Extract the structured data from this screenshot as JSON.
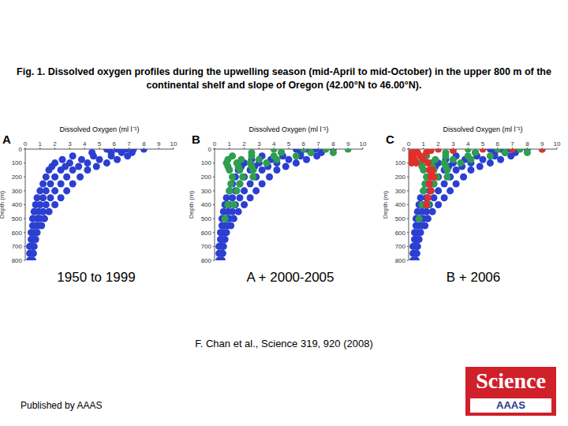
{
  "title": "Fig. 1. Dissolved oxygen profiles during the upwelling season (mid-April to mid-October) in the upper 800 m of the continental shelf and slope of Oregon (42.00°N to 46.00°N).",
  "citation": "F. Chan et al., Science 319, 920 (2008)",
  "footer": "Published by AAAS",
  "logo": {
    "text": "Science",
    "subtext": "AAAS"
  },
  "chart_data": [
    {
      "type": "scatter",
      "panel": "A",
      "caption": "1950 to 1999",
      "x_label": "Dissolved Oxygen (ml l⁻¹)",
      "y_label": "Depth (m)",
      "xlim": [
        0,
        10
      ],
      "xticks": [
        0,
        1,
        2,
        3,
        4,
        5,
        6,
        7,
        8,
        9,
        10
      ],
      "ylim": [
        0,
        800
      ],
      "yticks": [
        0,
        100,
        200,
        300,
        400,
        500,
        600,
        700,
        800
      ],
      "series": [
        {
          "color": "#2b3fd0",
          "x": [
            5.5,
            6.2,
            6.8,
            7.3,
            8.0,
            4.5,
            5.8,
            6.5,
            7.2,
            3.2,
            4.6,
            5.8,
            6.9,
            2.5,
            3.8,
            5.0,
            6.2,
            2.0,
            3.0,
            4.2,
            5.5,
            1.8,
            2.7,
            3.6,
            4.8,
            1.6,
            2.4,
            3.2,
            4.2,
            1.4,
            2.0,
            2.8,
            3.7,
            1.2,
            1.7,
            2.4,
            3.2,
            1.0,
            1.4,
            2.0,
            2.8,
            0.8,
            1.2,
            1.7,
            2.4,
            0.7,
            1.0,
            1.4,
            2.0,
            0.6,
            0.9,
            1.2,
            1.6,
            0.5,
            0.8,
            1.0,
            1.3,
            0.5,
            0.7,
            0.9,
            1.1,
            0.4,
            0.6,
            0.8,
            0.4,
            0.5,
            0.7,
            0.3,
            0.5,
            0.6,
            0.3,
            0.45,
            0.55,
            0.3,
            0.4,
            0.5
          ],
          "values": [
            0,
            0,
            0,
            0,
            0,
            25,
            25,
            25,
            25,
            50,
            50,
            50,
            50,
            75,
            75,
            75,
            75,
            100,
            100,
            100,
            100,
            125,
            125,
            125,
            125,
            150,
            150,
            150,
            150,
            200,
            200,
            200,
            200,
            250,
            250,
            250,
            250,
            300,
            300,
            300,
            300,
            350,
            350,
            350,
            350,
            400,
            400,
            400,
            400,
            450,
            450,
            450,
            450,
            500,
            500,
            500,
            500,
            550,
            550,
            550,
            550,
            600,
            600,
            600,
            650,
            650,
            650,
            700,
            700,
            700,
            750,
            750,
            750,
            800,
            800,
            800
          ]
        }
      ]
    },
    {
      "type": "scatter",
      "panel": "B",
      "caption": "A + 2000-2005",
      "x_label": "Dissolved Oxygen (ml l⁻¹)",
      "y_label": "Depth (m)",
      "xlim": [
        0,
        10
      ],
      "xticks": [
        0,
        1,
        2,
        3,
        4,
        5,
        6,
        7,
        8,
        9,
        10
      ],
      "ylim": [
        0,
        800
      ],
      "yticks": [
        0,
        100,
        200,
        300,
        400,
        500,
        600,
        700,
        800
      ],
      "series": [
        {
          "color": "#2b3fd0",
          "x": [
            5.5,
            6.2,
            6.8,
            7.3,
            8.0,
            4.5,
            5.8,
            6.5,
            7.2,
            3.2,
            4.6,
            5.8,
            6.9,
            2.5,
            3.8,
            5.0,
            6.2,
            2.0,
            3.0,
            4.2,
            5.5,
            1.8,
            2.7,
            3.6,
            4.8,
            1.6,
            2.4,
            3.2,
            4.2,
            1.4,
            2.0,
            2.8,
            3.7,
            1.2,
            1.7,
            2.4,
            3.2,
            1.0,
            1.4,
            2.0,
            2.8,
            0.8,
            1.2,
            1.7,
            2.4,
            0.7,
            1.0,
            1.4,
            2.0,
            0.6,
            0.9,
            1.2,
            1.6,
            0.5,
            0.8,
            1.0,
            1.3,
            0.5,
            0.7,
            0.9,
            1.1,
            0.4,
            0.6,
            0.8,
            0.4,
            0.5,
            0.7,
            0.3,
            0.5,
            0.6,
            0.3,
            0.45,
            0.55,
            0.3,
            0.4,
            0.5
          ],
          "values": [
            0,
            0,
            0,
            0,
            0,
            25,
            25,
            25,
            25,
            50,
            50,
            50,
            50,
            75,
            75,
            75,
            75,
            100,
            100,
            100,
            100,
            125,
            125,
            125,
            125,
            150,
            150,
            150,
            150,
            200,
            200,
            200,
            200,
            250,
            250,
            250,
            250,
            300,
            300,
            300,
            300,
            350,
            350,
            350,
            350,
            400,
            400,
            400,
            400,
            450,
            450,
            450,
            450,
            500,
            500,
            500,
            500,
            550,
            550,
            550,
            550,
            600,
            600,
            600,
            650,
            650,
            650,
            700,
            700,
            700,
            750,
            750,
            750,
            800,
            800,
            800
          ]
        },
        {
          "color": "#2e9e4f",
          "x": [
            4.0,
            6.0,
            7.5,
            9.0,
            2.5,
            4.5,
            6.5,
            8.0,
            1.2,
            2.5,
            4.0,
            5.5,
            0.9,
            1.8,
            3.0,
            4.2,
            0.8,
            1.5,
            2.4,
            3.5,
            0.9,
            1.6,
            2.5,
            1.0,
            1.7,
            2.6,
            1.2,
            1.9,
            2.6,
            1.1,
            1.7,
            1.0,
            1.5,
            0.9,
            1.3,
            0.7
          ],
          "values": [
            0,
            0,
            0,
            0,
            25,
            25,
            25,
            25,
            50,
            50,
            50,
            50,
            75,
            75,
            75,
            75,
            100,
            100,
            100,
            100,
            125,
            125,
            125,
            150,
            150,
            150,
            200,
            200,
            200,
            250,
            250,
            300,
            300,
            400,
            400,
            500
          ]
        }
      ]
    },
    {
      "type": "scatter",
      "panel": "C",
      "caption": "B + 2006",
      "x_label": "Dissolved Oxygen (ml l⁻¹)",
      "y_label": "Depth (m)",
      "xlim": [
        0,
        10
      ],
      "xticks": [
        0,
        1,
        2,
        3,
        4,
        5,
        6,
        7,
        8,
        9,
        10
      ],
      "ylim": [
        0,
        800
      ],
      "yticks": [
        0,
        100,
        200,
        300,
        400,
        500,
        600,
        700,
        800
      ],
      "series": [
        {
          "color": "#2b3fd0",
          "x": [
            5.5,
            6.2,
            6.8,
            7.3,
            8.0,
            4.5,
            5.8,
            6.5,
            7.2,
            3.2,
            4.6,
            5.8,
            6.9,
            2.5,
            3.8,
            5.0,
            6.2,
            2.0,
            3.0,
            4.2,
            5.5,
            1.8,
            2.7,
            3.6,
            4.8,
            1.6,
            2.4,
            3.2,
            4.2,
            1.4,
            2.0,
            2.8,
            3.7,
            1.2,
            1.7,
            2.4,
            3.2,
            1.0,
            1.4,
            2.0,
            2.8,
            0.8,
            1.2,
            1.7,
            2.4,
            0.7,
            1.0,
            1.4,
            2.0,
            0.6,
            0.9,
            1.2,
            1.6,
            0.5,
            0.8,
            1.0,
            1.3,
            0.5,
            0.7,
            0.9,
            1.1,
            0.4,
            0.6,
            0.8,
            0.4,
            0.5,
            0.7,
            0.3,
            0.5,
            0.6,
            0.3,
            0.45,
            0.55,
            0.3,
            0.4,
            0.5
          ],
          "values": [
            0,
            0,
            0,
            0,
            0,
            25,
            25,
            25,
            25,
            50,
            50,
            50,
            50,
            75,
            75,
            75,
            75,
            100,
            100,
            100,
            100,
            125,
            125,
            125,
            125,
            150,
            150,
            150,
            150,
            200,
            200,
            200,
            200,
            250,
            250,
            250,
            250,
            300,
            300,
            300,
            300,
            350,
            350,
            350,
            350,
            400,
            400,
            400,
            400,
            450,
            450,
            450,
            450,
            500,
            500,
            500,
            500,
            550,
            550,
            550,
            550,
            600,
            600,
            600,
            650,
            650,
            650,
            700,
            700,
            700,
            750,
            750,
            750,
            800,
            800,
            800
          ]
        },
        {
          "color": "#2e9e4f",
          "x": [
            4.0,
            6.0,
            7.5,
            9.0,
            2.5,
            4.5,
            6.5,
            8.0,
            1.2,
            2.5,
            4.0,
            5.5,
            0.9,
            1.8,
            3.0,
            4.2,
            0.8,
            1.5,
            2.4,
            3.5,
            0.9,
            1.6,
            2.5,
            1.0,
            1.7,
            2.6,
            1.2,
            1.9,
            2.6,
            1.1,
            1.7,
            1.0,
            1.5,
            0.9,
            1.3,
            0.7
          ],
          "values": [
            0,
            0,
            0,
            0,
            25,
            25,
            25,
            25,
            50,
            50,
            50,
            50,
            75,
            75,
            75,
            75,
            100,
            100,
            100,
            100,
            125,
            125,
            125,
            150,
            150,
            150,
            200,
            200,
            200,
            250,
            250,
            300,
            300,
            400,
            400,
            500
          ]
        },
        {
          "color": "#e0302a",
          "x": [
            2.0,
            5.0,
            7.0,
            9.0,
            0.5,
            1.5,
            3.0,
            0.2,
            0.6,
            1.2,
            0.1,
            0.3,
            0.8,
            0.1,
            0.4,
            1.0,
            0.2,
            0.5,
            1.3,
            1.4,
            1.6,
            1.5,
            1.7,
            1.4,
            1.5,
            1.3,
            1.2
          ],
          "values": [
            0,
            0,
            0,
            0,
            10,
            10,
            10,
            25,
            25,
            25,
            50,
            50,
            50,
            75,
            75,
            75,
            100,
            100,
            100,
            150,
            150,
            200,
            200,
            250,
            300,
            350,
            400
          ]
        }
      ]
    }
  ]
}
